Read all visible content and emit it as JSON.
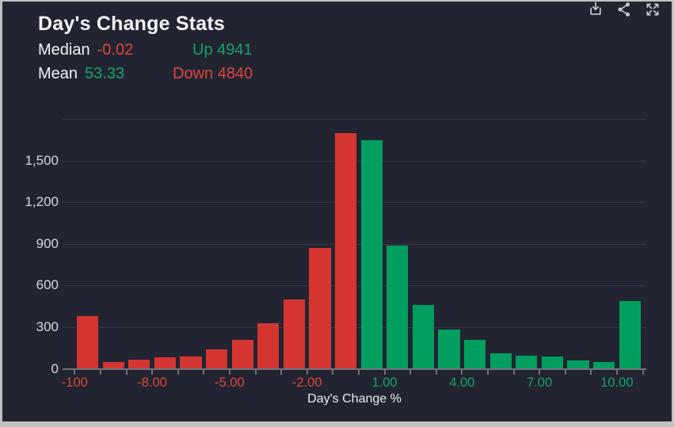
{
  "header": {
    "title": "Day's Change Stats",
    "stats": [
      {
        "label": "Median",
        "value": "-0.02",
        "value_tone": "red",
        "side": "Up 4941",
        "side_tone": "green"
      },
      {
        "label": "Mean",
        "value": "53.33",
        "value_tone": "green",
        "side": "Down 4840",
        "side_tone": "red"
      }
    ]
  },
  "toolbar": {
    "icons": [
      "download-icon",
      "share-icon",
      "fullscreen-icon"
    ]
  },
  "colors": {
    "frame": "#bfc0c2",
    "background": "#222431",
    "title_text": "#f2f3f7",
    "red_text": "#dd473c",
    "green_text": "#17a26b",
    "bar_down": "#d43530",
    "bar_up": "#009f60",
    "gridline": "#363945",
    "axis": "#6f727d",
    "axis_label_text": "#d6d8df"
  },
  "chart_data": {
    "type": "bar",
    "title": "Day's Change Stats",
    "xlabel": "Day's Change %",
    "ylabel": "",
    "ylim": [
      0,
      1800
    ],
    "ytick_interval": 300,
    "ytick_labels": [
      "0",
      "300",
      "600",
      "900",
      "1,200",
      "1,500"
    ],
    "grid": "horizontal",
    "legend": "none",
    "summary_stats": {
      "median": -0.02,
      "mean": 53.33,
      "up_count": 4941,
      "down_count": 4840
    },
    "bin_starts": [
      "-100",
      "-10",
      "-9",
      "-8",
      "-7",
      "-6",
      "-5",
      "-4",
      "-3",
      "-2",
      "-1",
      "0",
      "1",
      "2",
      "3",
      "4",
      "5",
      "6",
      "7",
      "8",
      "9",
      "10"
    ],
    "values": [
      380,
      50,
      65,
      80,
      90,
      140,
      210,
      330,
      500,
      870,
      1700,
      1650,
      890,
      460,
      280,
      210,
      110,
      95,
      90,
      60,
      50,
      490
    ],
    "down_bins": 11,
    "xtick_labels": [
      {
        "text": "-100",
        "tick_index": 0
      },
      {
        "text": "-8.00",
        "tick_index": 3
      },
      {
        "text": "-5.00",
        "tick_index": 6
      },
      {
        "text": "-2.00",
        "tick_index": 9
      },
      {
        "text": "1.00",
        "tick_index": 12
      },
      {
        "text": "4.00",
        "tick_index": 15
      },
      {
        "text": "7.00",
        "tick_index": 18
      },
      {
        "text": "10.00",
        "tick_index": 21
      }
    ]
  }
}
